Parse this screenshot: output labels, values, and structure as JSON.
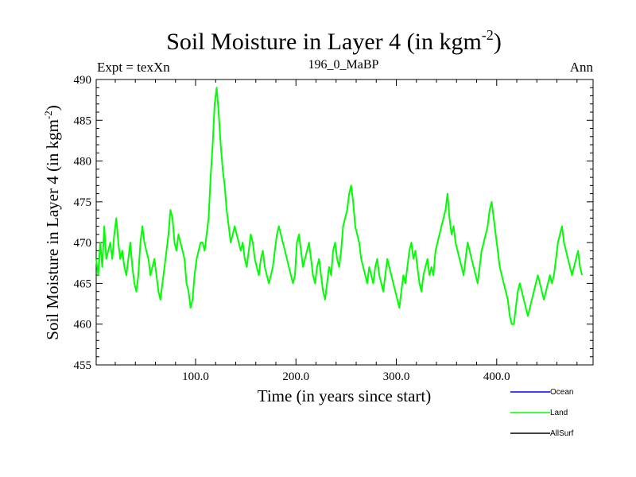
{
  "chart_data": {
    "type": "line",
    "title": "Soil Moisture in Layer 4 (in kgm",
    "title_sup": "-2",
    "title_close": ")",
    "subtitle_left": "Expt = texXn",
    "subtitle_center": "196_0_MaBP",
    "subtitle_right": "Ann",
    "xlabel": "Time (in years since start)",
    "ylabel": "Soil Moisture in Layer 4 (in kgm",
    "ylabel_sup": "-2",
    "ylabel_close": ")",
    "xlim": [
      1,
      496
    ],
    "ylim": [
      455,
      490
    ],
    "x_ticks": [
      {
        "value": 100,
        "label": "100.0"
      },
      {
        "value": 200,
        "label": "200.0"
      },
      {
        "value": 300,
        "label": "300.0"
      },
      {
        "value": 400,
        "label": "400.0"
      }
    ],
    "y_ticks": [
      {
        "value": 455,
        "label": "455"
      },
      {
        "value": 460,
        "label": "460"
      },
      {
        "value": 465,
        "label": "465"
      },
      {
        "value": 470,
        "label": "470"
      },
      {
        "value": 475,
        "label": "475"
      },
      {
        "value": 480,
        "label": "480"
      },
      {
        "value": 485,
        "label": "485"
      },
      {
        "value": 490,
        "label": "490"
      }
    ],
    "legend": [
      {
        "name": "Ocean",
        "color": "#0000ff"
      },
      {
        "name": "Land",
        "color": "#00ff00"
      },
      {
        "name": "AllSurf",
        "color": "#000000"
      }
    ],
    "series": [
      {
        "name": "Land",
        "color": "#00ff00",
        "x_start": 1,
        "x_step": 2,
        "values": [
          468,
          466,
          470,
          467,
          472,
          468,
          469,
          470,
          468,
          471,
          473,
          470,
          468,
          469,
          467,
          466,
          468,
          470,
          467,
          465,
          464,
          466,
          470,
          472,
          470,
          469,
          468,
          466,
          467,
          468,
          466,
          464,
          463,
          465,
          467,
          469,
          471,
          474,
          473,
          470,
          469,
          471,
          470,
          469,
          468,
          465,
          464,
          462,
          463,
          466,
          468,
          469,
          470,
          470,
          469,
          471,
          473,
          478,
          482,
          487,
          489,
          486,
          482,
          479,
          477,
          474,
          472,
          470,
          471,
          472,
          471,
          470,
          469,
          470,
          468,
          467,
          469,
          471,
          470,
          468,
          467,
          466,
          468,
          469,
          467,
          466,
          465,
          466,
          467,
          469,
          471,
          472,
          471,
          470,
          469,
          468,
          467,
          466,
          465,
          466,
          470,
          471,
          469,
          467,
          468,
          469,
          470,
          468,
          466,
          465,
          467,
          468,
          466,
          464,
          463,
          465,
          467,
          466,
          469,
          470,
          468,
          467,
          469,
          472,
          473,
          474,
          476,
          477,
          475,
          472,
          471,
          470,
          468,
          467,
          466,
          465,
          467,
          466,
          465,
          467,
          468,
          466,
          465,
          464,
          466,
          468,
          467,
          466,
          465,
          464,
          463,
          462,
          464,
          466,
          465,
          467,
          469,
          470,
          468,
          469,
          467,
          465,
          464,
          466,
          467,
          468,
          466,
          467,
          466,
          469,
          470,
          471,
          472,
          473,
          474,
          476,
          473,
          471,
          472,
          470,
          469,
          468,
          467,
          466,
          468,
          470,
          469,
          468,
          467,
          466,
          465,
          467,
          469,
          470,
          471,
          472,
          474,
          475,
          473,
          471,
          469,
          467,
          466,
          465,
          464,
          463,
          461,
          460,
          460,
          462,
          464,
          465,
          464,
          463,
          462,
          461,
          462,
          463,
          464,
          465,
          466,
          465,
          464,
          463,
          464,
          465,
          466,
          465,
          466,
          468,
          470,
          471,
          472,
          470,
          469,
          468,
          467,
          466,
          467,
          468,
          469,
          467,
          466
        ]
      }
    ]
  }
}
